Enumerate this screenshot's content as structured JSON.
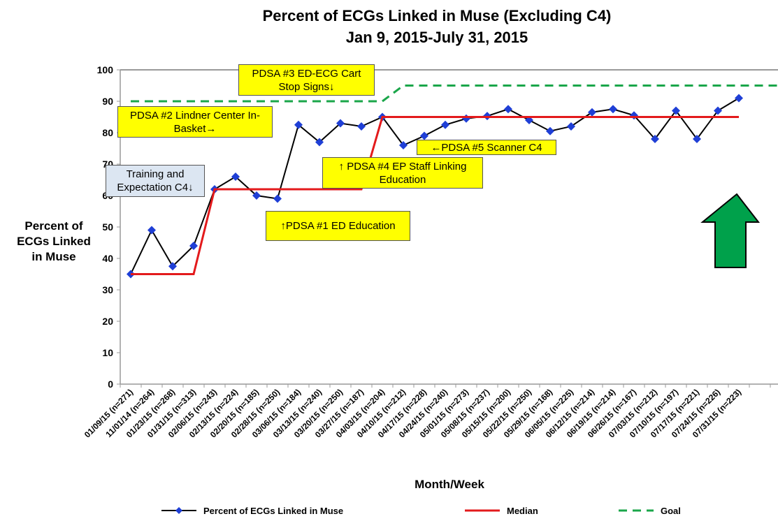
{
  "chart_data": {
    "type": "line",
    "title": "Percent of ECGs Linked in Muse (Excluding C4)",
    "subtitle": "Jan 9, 2015-July 31, 2015",
    "y_label": "Percent of ECGs Linked in Muse",
    "x_label": "Month/Week",
    "categories": [
      "01/09/15 (n=271)",
      "11/01/14 (n=264)",
      "01/23/15 (n=268)",
      "01/31/15 (n=313)",
      "02/06/15 (n=243)",
      "02/13/15 (n=224)",
      "02/20/15 (n=185)",
      "02/28/15 (n=250)",
      "03/06/15 (n=184)",
      "03/13/15 (n=240)",
      "03/20/15 (n=250)",
      "03/27/15 (n=187)",
      "04/03/15 (n=204)",
      "04/10/15 (n=212)",
      "04/17/15 (n=228)",
      "04/24/15 (n=240)",
      "05/01/15 (n=273)",
      "05/08/15 (n=237)",
      "05/15/15 (n=200)",
      "05/22/15 (n=250)",
      "05/29/15 (n=168)",
      "06/05/15 (n=225)",
      "06/12/15 (n=214)",
      "06/19/15 (n=214)",
      "06/26/15 (n=167)",
      "07/03/15 (n=212)",
      "07/10/15 (n=197)",
      "07/17/15 (n=221)",
      "07/24/15 (n=226)",
      "07/31/15 (n=223)",
      null,
      null
    ],
    "series": [
      {
        "name": "Percent of ECGs Linked in Muse",
        "color": "#000000",
        "marker_color": "#1f3fd6",
        "values": [
          35,
          49,
          37.5,
          44,
          62,
          66,
          60,
          59,
          82.5,
          77,
          83,
          82,
          85,
          76,
          79,
          82.5,
          84.5,
          85.3,
          87.5,
          84,
          80.5,
          82,
          86.5,
          87.5,
          85.5,
          78,
          87,
          78,
          87,
          91,
          null,
          null
        ]
      },
      {
        "name": "Median",
        "color": "#e31a1c",
        "values": [
          35,
          35,
          35,
          35,
          62,
          62,
          62,
          62,
          62,
          62,
          62,
          62,
          85,
          85,
          85,
          85,
          85,
          85,
          85,
          85,
          85,
          85,
          85,
          85,
          85,
          85,
          85,
          85,
          85,
          85,
          null,
          null
        ]
      },
      {
        "name": "Goal",
        "color": "#1aa64a",
        "dashed": true,
        "values": [
          90,
          90,
          90,
          90,
          90,
          90,
          90,
          90,
          90,
          90,
          90,
          90,
          90,
          95,
          95,
          95,
          95,
          95,
          95,
          95,
          95,
          95,
          95,
          95,
          95,
          95,
          95,
          95,
          95,
          95,
          95,
          95
        ]
      }
    ],
    "ylim": [
      0,
      100
    ],
    "yticks": [
      0,
      10,
      20,
      30,
      40,
      50,
      60,
      70,
      80,
      90,
      100
    ],
    "annotations": [
      "PDSA #3 ED-ECG Cart Stop Signs↓",
      "PDSA #2 Lindner Center In-Basket→",
      "Training and Expectation C4↓",
      "↑ PDSA #4 EP Staff Linking Education",
      "←PDSA #5 Scanner C4",
      "↑PDSA #1 ED Education"
    ]
  }
}
